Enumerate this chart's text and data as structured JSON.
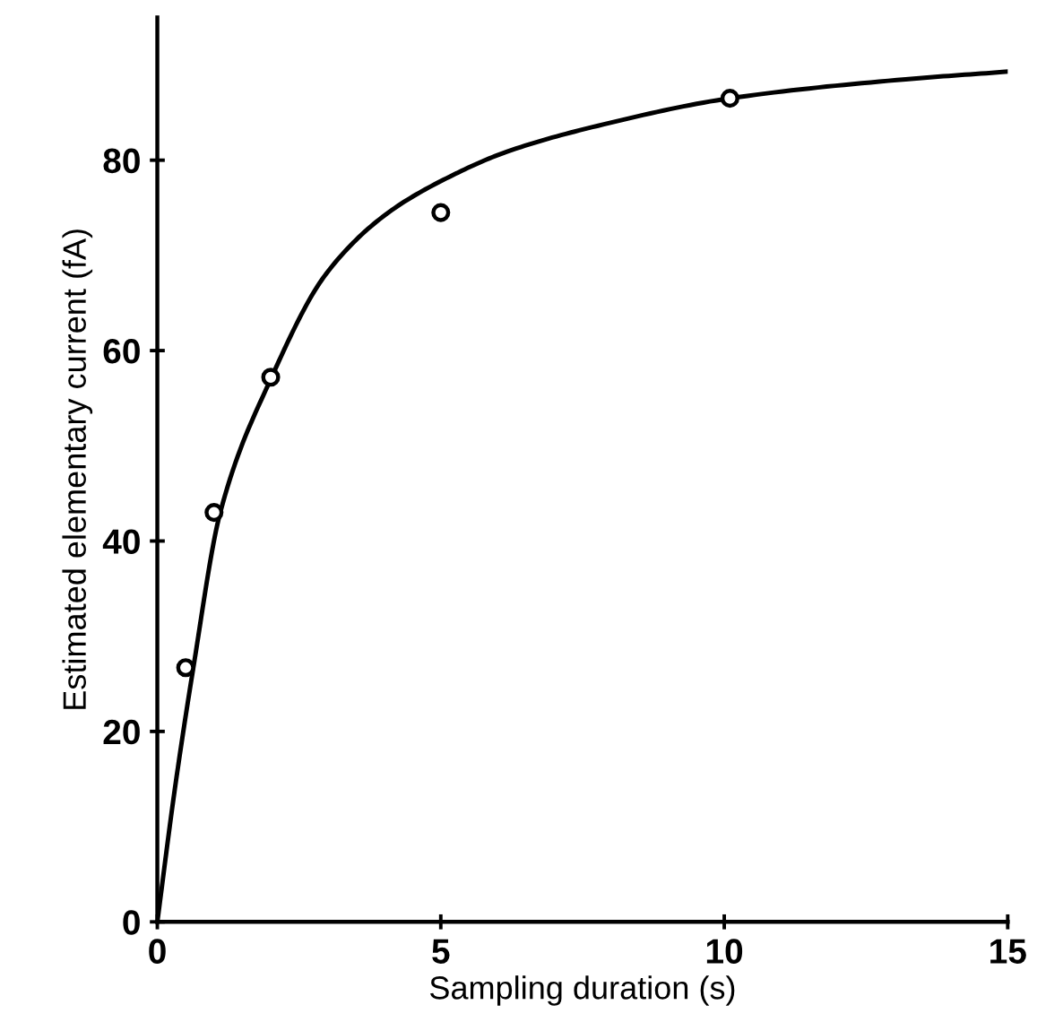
{
  "chart_data": {
    "type": "scatter",
    "xlabel": "Sampling duration (s)",
    "ylabel": "Estimated elementary current (fA)",
    "xlim": [
      0,
      15
    ],
    "ylim": [
      0,
      95
    ],
    "xticks": [
      0,
      5,
      10,
      15
    ],
    "yticks": [
      0,
      20,
      40,
      60,
      80
    ],
    "grid": false,
    "marker": "circle",
    "series": [
      {
        "color": "#000000",
        "x": [
          0.5,
          1.0,
          2.0,
          5.0,
          10.1
        ],
        "values": [
          26.7,
          43.0,
          57.2,
          74.5,
          86.5
        ]
      },
      {
        "type": "line",
        "color": "#000000",
        "marker": "none",
        "line_style": "solid",
        "x": [
          0,
          0.31,
          0.63,
          1.11,
          2.0,
          2.97,
          4.03,
          5.1,
          6.17,
          7.76,
          10.1,
          13.2,
          15
        ],
        "values": [
          0,
          14,
          26.5,
          43,
          57,
          68,
          74.3,
          78.1,
          80.9,
          83.6,
          86.5,
          88.5,
          89.3
        ]
      }
    ]
  }
}
